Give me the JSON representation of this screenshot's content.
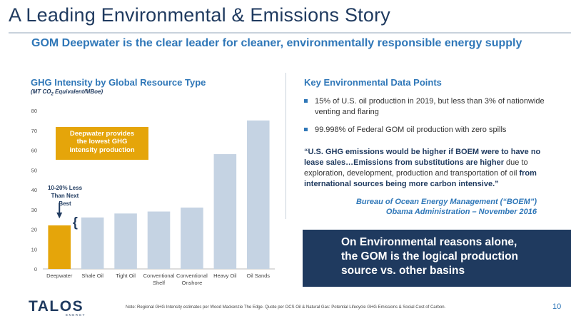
{
  "header": {
    "title": "A Leading Environmental & Emissions Story",
    "subtitle": "GOM Deepwater is the clear leader for cleaner, environmentally responsible energy supply"
  },
  "chart": {
    "title": "GHG Intensity by Global Resource Type",
    "subtitle_main": "(MT CO",
    "subtitle_sub": "2",
    "subtitle_rest": " Equivalent/MBoe)",
    "callout_lines": [
      "Deepwater provides",
      "the lowest GHG",
      "intensity production"
    ],
    "less_label_lines": [
      "10-20% Less",
      "Than Next Best"
    ],
    "brace": "{"
  },
  "chart_data": {
    "type": "bar",
    "categories": [
      [
        "Deepwater"
      ],
      [
        "Shale Oil"
      ],
      [
        "Tight Oil"
      ],
      [
        "Conventional",
        "Shelf"
      ],
      [
        "Conventional",
        "Onshore"
      ],
      [
        "Heavy Oil"
      ],
      [
        "Oil Sands"
      ]
    ],
    "values": [
      22,
      26,
      28,
      29,
      31,
      58,
      75
    ],
    "colors": [
      "#e5a50a",
      "#c5d3e3",
      "#c5d3e3",
      "#c5d3e3",
      "#c5d3e3",
      "#c5d3e3",
      "#c5d3e3"
    ],
    "ylim": [
      0,
      80
    ],
    "yticks": [
      0,
      10,
      20,
      30,
      40,
      50,
      60,
      70,
      80
    ],
    "grid": false
  },
  "key_points": {
    "title": "Key Environmental Data Points",
    "bullets": [
      "15% of U.S. oil production in 2019, but less than 3% of nationwide venting and flaring",
      "99.998% of Federal GOM oil production with zero spills"
    ],
    "quote_bold_1": "“U.S. GHG emissions would be higher if BOEM were to have no lease sales…Emissions from substitutions are higher",
    "quote_normal": " due to exploration, development, production and transportation of oil ",
    "quote_bold_2": "from international sources being more carbon intensive.”",
    "attribution_1": "Bureau of Ocean Energy Management (“BOEM”)",
    "attribution_2": "Obama Administration – November 2016"
  },
  "banner": {
    "lines": [
      "On Environmental reasons alone,",
      "the GOM is the logical production",
      "source vs. other basins"
    ]
  },
  "footer": {
    "logo_text": "TALOS",
    "logo_sub": "ENERGY",
    "footnote": "Note: Regional GHG Intensity estimates per Wood Mackenzie The Edge. Quote per OCS Oil & Natural Gas: Potential Lifecycle GHG Emissions & Social Cost of Carbon.",
    "page_number": "10"
  },
  "colors": {
    "navy": "#1f3a5f",
    "blue": "#2f77b8",
    "gold": "#e5a50a",
    "bar": "#c5d3e3"
  }
}
